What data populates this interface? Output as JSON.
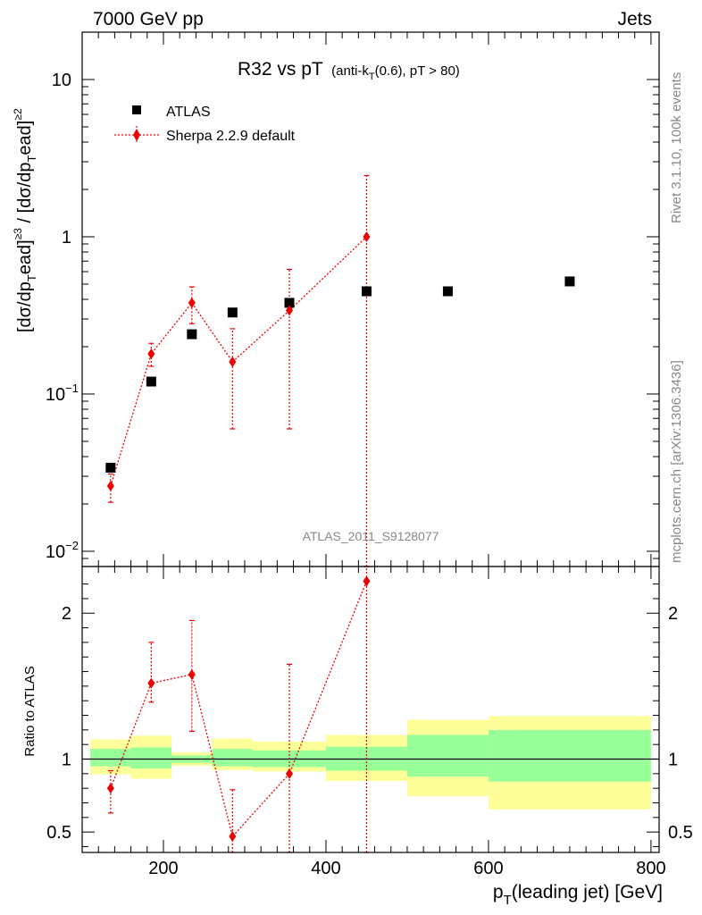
{
  "header": {
    "left": "7000 GeV pp",
    "right": "Jets"
  },
  "side": {
    "rivet": "Rivet 3.1.10,  100k events",
    "mcplots": "mcplots.cern.ch [arXiv:1306.3436]"
  },
  "chart_data": [
    {
      "type": "scatter",
      "panel": "main",
      "title_main": "R32 vs pT",
      "title_sub": "(anti-k",
      "title_sub_sub": "T",
      "title_sub_rest": "(0.6), pT > 80)",
      "ylabel": "[dσ/dp",
      "ylabel_full": "[dσ/dpTlead]≥3 / [dσ/dpTlead]≥2",
      "yscale": "log",
      "ylim": [
        0.008,
        20
      ],
      "xlim": [
        100,
        810
      ],
      "yticks": [
        {
          "v": 0.01,
          "base": "10",
          "exp": "−2"
        },
        {
          "v": 0.1,
          "base": "10",
          "exp": "−1"
        },
        {
          "v": 1,
          "base": "1",
          "exp": ""
        },
        {
          "v": 10,
          "base": "10",
          "exp": ""
        }
      ],
      "watermark": "ATLAS_2011_S9128077",
      "legend_position": "top-left",
      "series": [
        {
          "name": "ATLAS",
          "color": "#000000",
          "marker": "square",
          "x": [
            135,
            185,
            235,
            285,
            355,
            450,
            550,
            700
          ],
          "y": [
            0.034,
            0.12,
            0.24,
            0.33,
            0.38,
            0.45,
            0.45,
            0.52
          ]
        },
        {
          "name": "Sherpa 2.2.9 default",
          "color": "#ee0000",
          "marker": "diamond",
          "x": [
            135,
            185,
            235,
            285,
            355,
            450
          ],
          "y": [
            0.026,
            0.18,
            0.38,
            0.16,
            0.34,
            1.0
          ],
          "err_low": [
            0.0205,
            0.15,
            0.28,
            0.06,
            0.06,
            0.008
          ],
          "err_high": [
            0.031,
            0.21,
            0.48,
            0.26,
            0.62,
            2.45
          ]
        }
      ]
    },
    {
      "type": "scatter",
      "panel": "ratio",
      "ylabel": "Ratio to ATLAS",
      "ylim": [
        0.36,
        2.32
      ],
      "xlim": [
        100,
        810
      ],
      "yticks": [
        0.5,
        1,
        2
      ],
      "xticks": [
        200,
        400,
        600,
        800
      ],
      "xlabel_main": "p",
      "xlabel_sub": "T",
      "xlabel_rest": "(leading jet) [GeV]",
      "bands": [
        {
          "x0": 110,
          "x1": 160,
          "g_lo": 0.95,
          "g_hi": 1.07,
          "y_lo": 0.895,
          "y_hi": 1.135
        },
        {
          "x0": 160,
          "x1": 210,
          "g_lo": 0.935,
          "g_hi": 1.08,
          "y_lo": 0.865,
          "y_hi": 1.16
        },
        {
          "x0": 210,
          "x1": 260,
          "g_lo": 0.975,
          "g_hi": 1.025,
          "y_lo": 0.955,
          "y_hi": 1.045
        },
        {
          "x0": 260,
          "x1": 310,
          "g_lo": 0.95,
          "g_hi": 1.07,
          "y_lo": 0.925,
          "y_hi": 1.14
        },
        {
          "x0": 310,
          "x1": 400,
          "g_lo": 0.945,
          "g_hi": 1.06,
          "y_lo": 0.915,
          "y_hi": 1.12
        },
        {
          "x0": 400,
          "x1": 500,
          "g_lo": 0.92,
          "g_hi": 1.085,
          "y_lo": 0.85,
          "y_hi": 1.165
        },
        {
          "x0": 500,
          "x1": 600,
          "g_lo": 0.88,
          "g_hi": 1.165,
          "y_lo": 0.745,
          "y_hi": 1.27
        },
        {
          "x0": 600,
          "x1": 800,
          "g_lo": 0.845,
          "g_hi": 1.2,
          "y_lo": 0.655,
          "y_hi": 1.295
        }
      ],
      "band_colors": {
        "inner": "#99ff99",
        "outer": "#ffff99"
      },
      "series": [
        {
          "name": "Sherpa 2.2.9 default",
          "color": "#ee0000",
          "x": [
            135,
            185,
            235,
            285,
            355,
            450
          ],
          "y": [
            0.8,
            1.52,
            1.58,
            0.47,
            0.9,
            2.22
          ],
          "err_low": [
            0.63,
            1.39,
            1.19,
            0.36,
            0.36,
            0.36
          ],
          "err_high": [
            0.92,
            1.8,
            1.95,
            0.79,
            1.65,
            2.32
          ]
        }
      ]
    }
  ]
}
